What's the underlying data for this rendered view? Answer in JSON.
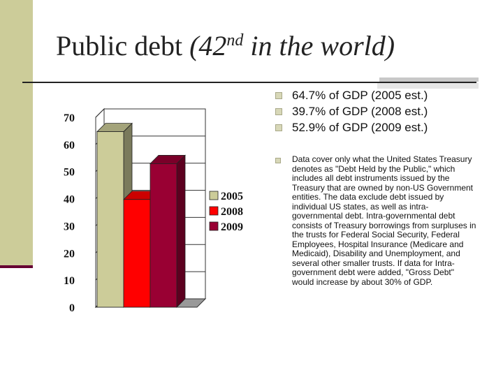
{
  "slide": {
    "title_main": "Public debt ",
    "title_paren_open": "(42",
    "title_sup": "nd",
    "title_rest": " in the world)"
  },
  "bullets": [
    "64.7% of GDP (2005 est.)",
    "39.7% of GDP (2008 est.)",
    "52.9% of GDP (2009 est.)"
  ],
  "note": "Data cover only what the United States Treasury denotes as \"Debt Held by the Public,\" which includes all debt instruments issued by the Treasury that are owned by non-US Government entities. The data exclude debt issued by individual US states, as well as intra-governmental debt. Intra-governmental debt consists of Treasury borrowings from surpluses in the trusts for Federal Social Security, Federal Employees, Hospital Insurance (Medicare and Medicaid), Disability and Unemployment, and several other smaller trusts. If data for Intra-government debt were added, \"Gross Debt\" would increase by about 30% of GDP.",
  "colors": {
    "s2005": "#cccc99",
    "s2008": "#ff0000",
    "s2009": "#990033"
  },
  "chart_data": {
    "type": "bar",
    "title": "",
    "xlabel": "",
    "ylabel": "",
    "ylim": [
      0,
      70
    ],
    "yticks": [
      0,
      10,
      20,
      30,
      40,
      50,
      60,
      70
    ],
    "grid": true,
    "legend": "right",
    "series": [
      {
        "name": "2005",
        "values": [
          64.7
        ]
      },
      {
        "name": "2008",
        "values": [
          39.7
        ]
      },
      {
        "name": "2009",
        "values": [
          52.9
        ]
      }
    ]
  }
}
